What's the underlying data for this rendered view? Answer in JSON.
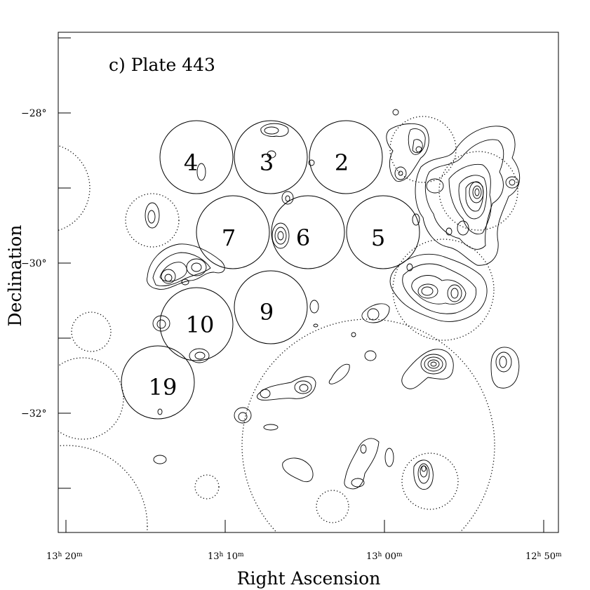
{
  "panel_title": "c) Plate 443",
  "axes": {
    "xlabel": "Right Ascension",
    "ylabel": "Declination",
    "x_ticks": [
      {
        "h": "13",
        "m": "20"
      },
      {
        "h": "13",
        "m": "10"
      },
      {
        "h": "13",
        "m": "00"
      },
      {
        "h": "12",
        "m": "50"
      }
    ],
    "y_ticks": [
      "−28°",
      "−30°",
      "−32°"
    ]
  },
  "fields": [
    "4",
    "3",
    "2",
    "7",
    "6",
    "5",
    "9",
    "10",
    "19"
  ]
}
